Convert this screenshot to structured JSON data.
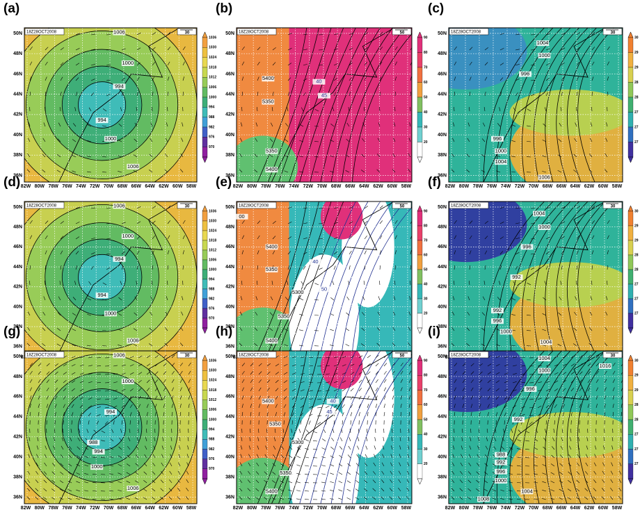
{
  "lon_labels": [
    "82W",
    "80W",
    "78W",
    "76W",
    "74W",
    "72W",
    "70W",
    "68W",
    "66W",
    "64W",
    "62W",
    "60W",
    "58W"
  ],
  "lat_labels": [
    "50N",
    "48N",
    "46N",
    "44N",
    "42N",
    "40N",
    "38N",
    "36N"
  ],
  "panels": [
    {
      "label": "(a)",
      "stamp": "18Z28OCT2008",
      "vector_ref": 30,
      "colorbar": [
        1036,
        1030,
        1024,
        1018,
        1012,
        1006,
        1000,
        994,
        988,
        982,
        976,
        970
      ],
      "contour_labels": [
        "1006",
        "1000",
        "994",
        "994",
        "1000",
        "1006"
      ]
    },
    {
      "label": "(b)",
      "stamp": "18Z28OCT2008",
      "vector_ref": 50,
      "colorbar": [
        90,
        80,
        70,
        60,
        50,
        40,
        30,
        20
      ],
      "contour_labels": [
        "5400",
        "5350",
        "5350",
        "5400",
        "40",
        "45"
      ]
    },
    {
      "label": "(c)",
      "stamp": "18Z28OCT2008",
      "vector_ref": 30,
      "colorbar": [
        "30",
        "29",
        "29",
        "28",
        "28",
        "27",
        "27",
        "27"
      ],
      "contour_labels": [
        "1004",
        "1000",
        "996",
        "996",
        "1000",
        "1004",
        "1006"
      ]
    },
    {
      "label": "(d)",
      "stamp": "18Z28OCT2008",
      "vector_ref": 30,
      "colorbar": [
        1036,
        1030,
        1024,
        1018,
        1012,
        1006,
        1000,
        994,
        988,
        982,
        976,
        970
      ],
      "contour_labels": [
        "1006",
        "1000",
        "994",
        "994",
        "1000",
        "1006"
      ]
    },
    {
      "label": "(e)",
      "stamp": "18Z28OCT2008",
      "vector_ref": 50,
      "colorbar": [
        90,
        80,
        70,
        60,
        50,
        40,
        30,
        20
      ],
      "contour_labels": [
        "00",
        "5400",
        "5350",
        "5300",
        "5350",
        "5400",
        "40",
        "50"
      ]
    },
    {
      "label": "(f)",
      "stamp": "18Z28OCT2008",
      "vector_ref": 30,
      "colorbar": [
        "30",
        "29",
        "29",
        "28",
        "28",
        "27",
        "27",
        "27"
      ],
      "contour_labels": [
        "1004",
        "1000",
        "996",
        "992",
        "992",
        "996",
        "1000",
        "1004"
      ]
    },
    {
      "label": "(g)",
      "stamp": "18Z28OCT2008",
      "vector_ref": 30,
      "colorbar": [
        1036,
        1030,
        1024,
        1018,
        1012,
        1006,
        1000,
        994,
        988,
        982,
        976,
        970
      ],
      "contour_labels": [
        "1006",
        "1000",
        "994",
        "988",
        "994",
        "1000",
        "1006"
      ]
    },
    {
      "label": "(h)",
      "stamp": "18Z28OCT2008",
      "vector_ref": 50,
      "colorbar": [
        90,
        80,
        70,
        60,
        50,
        40,
        30,
        20
      ],
      "contour_labels": [
        "5400",
        "5350",
        "5300",
        "5350",
        "5400",
        "40",
        "45"
      ]
    },
    {
      "label": "(i)",
      "stamp": "18Z28OCT2008",
      "vector_ref": 30,
      "colorbar": [
        "30",
        "29",
        "29",
        "28",
        "28",
        "27",
        "27",
        "27"
      ],
      "contour_labels": [
        "1004",
        "1000",
        "996",
        "992",
        "988",
        "992",
        "996",
        "1000",
        "1004",
        "1008",
        "1016"
      ]
    }
  ]
}
